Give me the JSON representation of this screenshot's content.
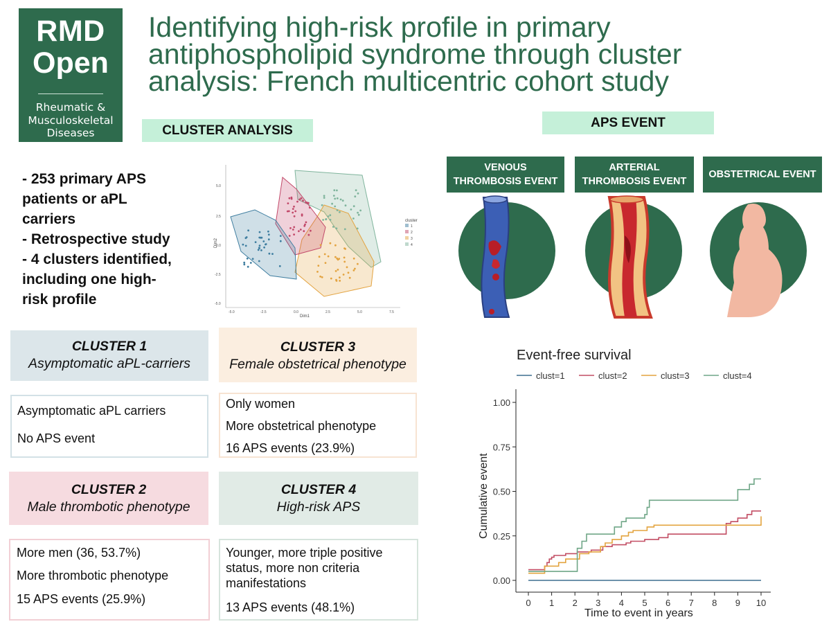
{
  "logo": {
    "line1": "RMD",
    "line2": "Open",
    "sub1": "Rheumatic &",
    "sub2": "Musculoskeletal",
    "sub3": "Diseases"
  },
  "title": {
    "line1": "Identifying high-risk profile in primary",
    "line2": "antiphospholipid syndrome through cluster",
    "line3": "analysis: French multicentric cohort study"
  },
  "cluster_analysis_label": "CLUSTER ANALYSIS",
  "aps_event_label": "APS EVENT",
  "summary": {
    "lines": [
      "- 253 primary APS",
      "patients or aPL",
      "carriers",
      "- Retrospective study",
      "- 4 clusters identified,",
      "including one high-",
      "risk profile"
    ]
  },
  "events": [
    {
      "line1": "VENOUS",
      "line2": "THROMBOSIS EVENT"
    },
    {
      "line1": "ARTERIAL",
      "line2": "THROMBOSIS EVENT"
    },
    {
      "line1": "OBSTETRICAL EVENT",
      "line2": ""
    }
  ],
  "clusters": [
    {
      "title": "CLUSTER 1",
      "subtitle": "Asymptomatic aPL-carriers",
      "lines": [
        "Asymptomatic aPL carriers",
        "No APS event"
      ],
      "head_color": "#dce6ea",
      "border_color": "#d3e1e6"
    },
    {
      "title": "CLUSTER 2",
      "subtitle": "Male thrombotic phenotype",
      "lines": [
        "More men (36, 53.7%)",
        "More thrombotic phenotype",
        "15 APS events (25.9%)"
      ],
      "head_color": "#f6dbe0",
      "border_color": "#f2cfd5"
    },
    {
      "title": "CLUSTER 3",
      "subtitle": "Female obstetrical phenotype",
      "lines": [
        "Only women",
        "More obstetrical phenotype",
        "16 APS events (23.9%)"
      ],
      "head_color": "#fbeee0",
      "border_color": "#f7e3d2"
    },
    {
      "title": "CLUSTER 4",
      "subtitle": "High-risk APS",
      "lines": [
        "Younger, more triple positive",
        "status, more non criteria",
        "manifestations",
        "13 APS events (48.1%)"
      ],
      "head_color": "#e1ebe6",
      "border_color": "#d6e4dc"
    }
  ],
  "scatter": {
    "ylabel": "Dim2",
    "xlabel": "Dim1",
    "legend_title": "cluster",
    "x_ticks": [
      "-5.0",
      "-2.5",
      "0.0",
      "2.5",
      "5.0",
      "7.5"
    ],
    "y_ticks": [
      "5.0",
      "2.5",
      "0.0",
      "-2.5",
      "-5.0"
    ],
    "legend": [
      "1",
      "2",
      "3",
      "4"
    ],
    "colors": [
      "#3f7ea0",
      "#c2496a",
      "#e3a340",
      "#7fb49c"
    ]
  },
  "chart_data": {
    "type": "line",
    "title": "Event-free survival",
    "xlabel": "Time to event in years",
    "ylabel": "Cumulative event",
    "xlim": [
      0,
      10
    ],
    "ylim": [
      0,
      1
    ],
    "x_ticks": [
      "0",
      "1",
      "2",
      "3",
      "4",
      "5",
      "6",
      "7",
      "8",
      "9",
      "10"
    ],
    "y_ticks": [
      "0.00",
      "0.25",
      "0.50",
      "0.75",
      "1.00"
    ],
    "legend_position": "top",
    "series": [
      {
        "name": "clust=1",
        "color": "#3d6e8f",
        "points": [
          [
            0,
            0
          ],
          [
            10,
            0
          ]
        ]
      },
      {
        "name": "clust=2",
        "color": "#c24d63",
        "points": [
          [
            0,
            0.06
          ],
          [
            0.6,
            0.06
          ],
          [
            0.7,
            0.08
          ],
          [
            0.8,
            0.1
          ],
          [
            0.9,
            0.12
          ],
          [
            1.0,
            0.13
          ],
          [
            1.1,
            0.14
          ],
          [
            1.6,
            0.15
          ],
          [
            2.0,
            0.15
          ],
          [
            2.1,
            0.16
          ],
          [
            2.5,
            0.16
          ],
          [
            2.7,
            0.17
          ],
          [
            3.2,
            0.19
          ],
          [
            3.6,
            0.2
          ],
          [
            4.0,
            0.2
          ],
          [
            4.2,
            0.21
          ],
          [
            4.4,
            0.22
          ],
          [
            5.0,
            0.23
          ],
          [
            5.6,
            0.24
          ],
          [
            6.0,
            0.26
          ],
          [
            8.4,
            0.26
          ],
          [
            8.5,
            0.32
          ],
          [
            8.7,
            0.33
          ],
          [
            9.0,
            0.35
          ],
          [
            9.4,
            0.37
          ],
          [
            9.6,
            0.39
          ],
          [
            10,
            0.39
          ]
        ]
      },
      {
        "name": "clust=3",
        "color": "#e3a43f",
        "points": [
          [
            0,
            0.04
          ],
          [
            0.6,
            0.04
          ],
          [
            0.7,
            0.08
          ],
          [
            1.2,
            0.08
          ],
          [
            1.3,
            0.1
          ],
          [
            1.6,
            0.12
          ],
          [
            2.0,
            0.12
          ],
          [
            2.2,
            0.15
          ],
          [
            2.5,
            0.15
          ],
          [
            2.6,
            0.16
          ],
          [
            3.0,
            0.16
          ],
          [
            3.1,
            0.19
          ],
          [
            3.3,
            0.21
          ],
          [
            3.6,
            0.23
          ],
          [
            4.0,
            0.25
          ],
          [
            4.3,
            0.27
          ],
          [
            4.5,
            0.28
          ],
          [
            5.0,
            0.28
          ],
          [
            5.1,
            0.3
          ],
          [
            5.4,
            0.31
          ],
          [
            10,
            0.31
          ],
          [
            10,
            0.36
          ]
        ]
      },
      {
        "name": "clust=4",
        "color": "#6fa687",
        "points": [
          [
            0,
            0.05
          ],
          [
            2.0,
            0.05
          ],
          [
            2.1,
            0.18
          ],
          [
            2.3,
            0.22
          ],
          [
            2.5,
            0.26
          ],
          [
            3.5,
            0.26
          ],
          [
            3.7,
            0.3
          ],
          [
            4.0,
            0.33
          ],
          [
            4.2,
            0.35
          ],
          [
            5.0,
            0.37
          ],
          [
            5.1,
            0.41
          ],
          [
            5.2,
            0.45
          ],
          [
            8.8,
            0.45
          ],
          [
            9.0,
            0.51
          ],
          [
            9.5,
            0.54
          ],
          [
            9.7,
            0.57
          ],
          [
            10,
            0.57
          ]
        ]
      }
    ]
  }
}
